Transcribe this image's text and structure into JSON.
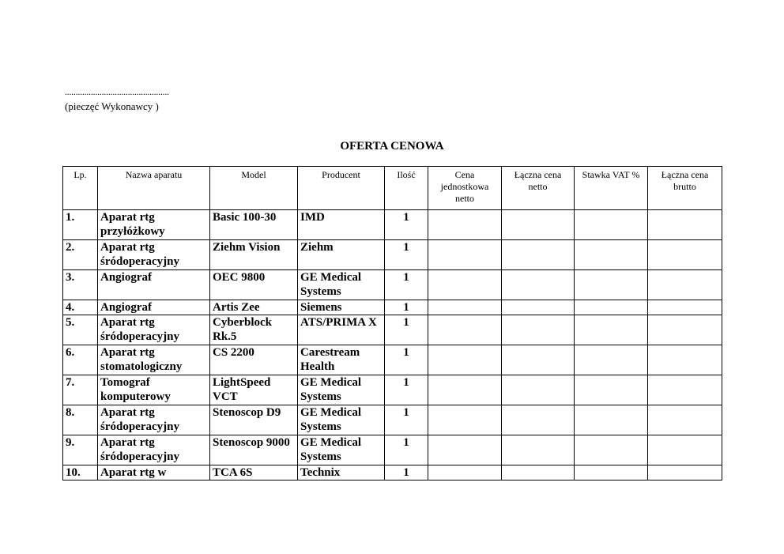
{
  "stamp": {
    "dots": "................................................",
    "label": "(pieczęć Wykonawcy )"
  },
  "title": "OFERTA CENOWA",
  "headers": [
    "Lp.",
    "Nazwa aparatu",
    "Model",
    "Producent",
    "Ilość",
    "Cena jednostkowa netto",
    "Łączna cena netto",
    "Stawka VAT %",
    "Łączna cena brutto"
  ],
  "rows": [
    {
      "lp": "1.",
      "name": "Aparat rtg przyłóżkowy",
      "model": "Basic 100-30",
      "producer": "IMD",
      "qty": "1"
    },
    {
      "lp": "2.",
      "name": "Aparat rtg śródoperacyjny",
      "model": "Ziehm Vision",
      "producer": "Ziehm",
      "qty": "1"
    },
    {
      "lp": "3.",
      "name": "Angiograf",
      "model": "OEC 9800",
      "producer": "GE Medical Systems",
      "qty": "1"
    },
    {
      "lp": "4.",
      "name": "Angiograf",
      "model": "Artis Zee",
      "producer": "Siemens",
      "qty": "1"
    },
    {
      "lp": "5.",
      "name": "Aparat rtg śródoperacyjny",
      "model": "Cyberblock Rk.5",
      "producer": "ATS/PRIMA X",
      "qty": "1"
    },
    {
      "lp": "6.",
      "name": "Aparat rtg stomatologiczny",
      "model": "CS 2200",
      "producer": "Carestream Health",
      "qty": "1"
    },
    {
      "lp": "7.",
      "name": "Tomograf komputerowy",
      "model": "LightSpeed VCT",
      "producer": "GE Medical Systems",
      "qty": "1"
    },
    {
      "lp": "8.",
      "name": "Aparat rtg śródoperacyjny",
      "model": "Stenoscop D9",
      "producer": "GE Medical Systems",
      "qty": "1"
    },
    {
      "lp": "9.",
      "name": "Aparat rtg śródoperacyjny",
      "model": "Stenoscop 9000",
      "producer": "GE Medical Systems",
      "qty": "1"
    },
    {
      "lp": "10.",
      "name": "Aparat rtg w",
      "model": "TCA 6S",
      "producer": "Technix",
      "qty": "1"
    }
  ]
}
